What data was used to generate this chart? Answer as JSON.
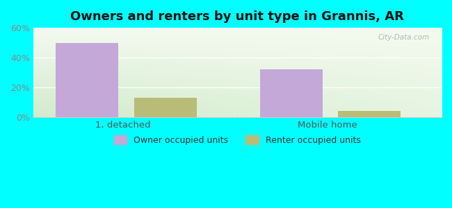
{
  "title": "Owners and renters by unit type in Grannis, AR",
  "categories": [
    "1, detached",
    "Mobile home"
  ],
  "owner_values": [
    50,
    32
  ],
  "renter_values": [
    13,
    4
  ],
  "owner_color": "#c4a8d8",
  "renter_color": "#b8bc78",
  "ylim": [
    0,
    60
  ],
  "yticks": [
    0,
    20,
    40,
    60
  ],
  "ytick_labels": [
    "0%",
    "20%",
    "40%",
    "60%"
  ],
  "bar_width": 0.32,
  "legend_owner": "Owner occupied units",
  "legend_renter": "Renter occupied units",
  "title_fontsize": 13,
  "watermark": "City-Data.com",
  "bg_left": "#d0ecd0",
  "bg_right": "#eef8f0",
  "bg_top": "#f5f8f0",
  "bg_bottom": "#c8e8c4",
  "outer_color": "#00ffff"
}
